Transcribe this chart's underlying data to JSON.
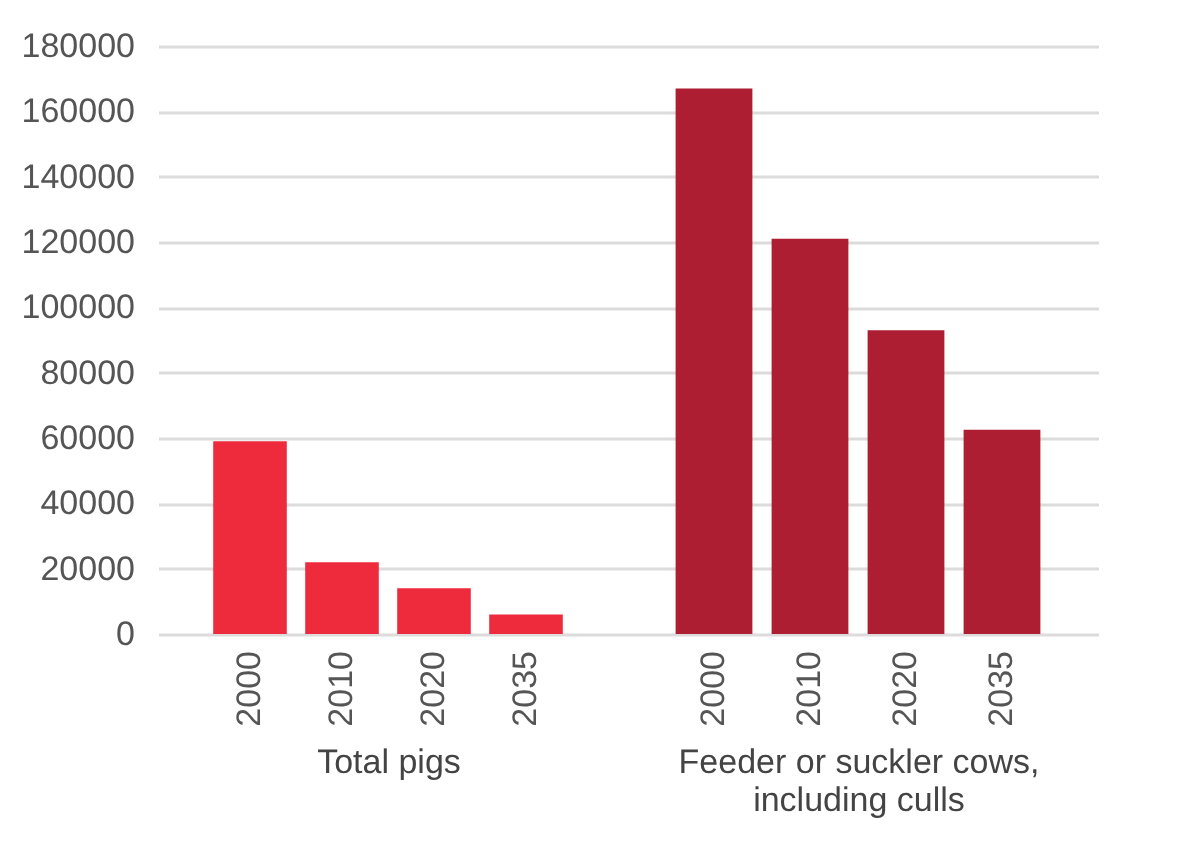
{
  "chart_data": [
    {
      "type": "bar",
      "xlabel": "Total pigs",
      "categories": [
        "2000",
        "2010",
        "2020",
        "2035"
      ],
      "values": [
        59000,
        22000,
        14000,
        6000
      ],
      "color": "#ee2a3d",
      "ylim": [
        0,
        180000
      ],
      "yticks": [
        0,
        20000,
        40000,
        60000,
        80000,
        100000,
        120000,
        140000,
        160000,
        180000
      ],
      "grid": "y"
    },
    {
      "type": "bar",
      "xlabel": "Feeder or suckler cows, including culls",
      "categories": [
        "2000",
        "2010",
        "2020",
        "2035"
      ],
      "values": [
        167000,
        121000,
        93000,
        62500
      ],
      "color": "#ad1e33",
      "ylim": [
        0,
        180000
      ],
      "yticks": [
        0,
        20000,
        40000,
        60000,
        80000,
        100000,
        120000,
        140000,
        160000,
        180000
      ],
      "grid": "y",
      "tick_labels": "x"
    }
  ]
}
